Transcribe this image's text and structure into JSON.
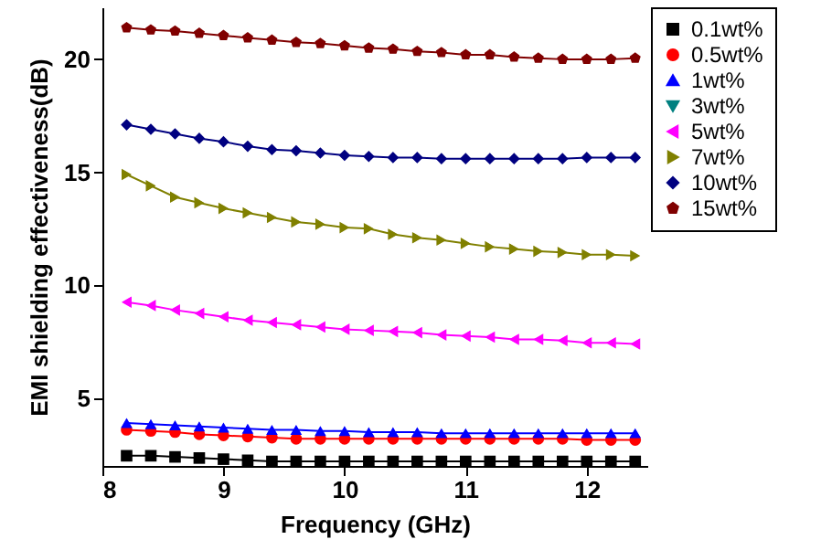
{
  "chart_data": {
    "type": "line",
    "xlabel": "Frequency (GHz)",
    "ylabel": "EMI shielding effectiveness(dB)",
    "x": [
      8.2,
      8.4,
      8.6,
      8.8,
      9.0,
      9.2,
      9.4,
      9.6,
      9.8,
      10.0,
      10.2,
      10.4,
      10.6,
      10.8,
      11.0,
      11.2,
      11.4,
      11.6,
      11.8,
      12.0,
      12.2,
      12.4
    ],
    "xlim": [
      8,
      12.5
    ],
    "xticks": [
      8,
      9,
      10,
      11,
      12
    ],
    "ylim": [
      2,
      22.3
    ],
    "yticks": [
      5,
      10,
      15,
      20
    ],
    "grid": false,
    "legend": "right",
    "line_style": "solid",
    "series": [
      {
        "name": "0.1wt%",
        "color": "#000000",
        "marker": "square",
        "values": [
          2.45,
          2.45,
          2.4,
          2.35,
          2.3,
          2.25,
          2.2,
          2.2,
          2.2,
          2.2,
          2.2,
          2.2,
          2.2,
          2.2,
          2.2,
          2.2,
          2.2,
          2.2,
          2.2,
          2.2,
          2.2,
          2.2
        ]
      },
      {
        "name": "0.5wt%",
        "color": "#ff0000",
        "marker": "circle",
        "values": [
          3.6,
          3.55,
          3.5,
          3.4,
          3.35,
          3.3,
          3.25,
          3.2,
          3.2,
          3.2,
          3.2,
          3.2,
          3.2,
          3.2,
          3.2,
          3.2,
          3.2,
          3.2,
          3.2,
          3.15,
          3.15,
          3.15
        ]
      },
      {
        "name": "1wt%",
        "color": "#0000ff",
        "marker": "triangle",
        "values": [
          3.9,
          3.85,
          3.8,
          3.75,
          3.7,
          3.65,
          3.6,
          3.6,
          3.55,
          3.55,
          3.5,
          3.5,
          3.5,
          3.45,
          3.45,
          3.45,
          3.45,
          3.45,
          3.45,
          3.45,
          3.45,
          3.45
        ]
      },
      {
        "name": "3wt%",
        "color": "#008080",
        "marker": "triangle-down",
        "values": [
          null,
          null,
          null,
          null,
          null,
          null,
          null,
          null,
          null,
          null,
          null,
          null,
          null,
          null,
          null,
          null,
          null,
          null,
          null,
          null,
          null,
          null
        ]
      },
      {
        "name": "5wt%",
        "color": "#ff00ff",
        "marker": "triangle-left",
        "values": [
          9.25,
          9.1,
          8.9,
          8.75,
          8.6,
          8.45,
          8.35,
          8.25,
          8.15,
          8.05,
          8.0,
          7.95,
          7.9,
          7.8,
          7.75,
          7.7,
          7.6,
          7.6,
          7.55,
          7.45,
          7.45,
          7.4
        ]
      },
      {
        "name": "7wt%",
        "color": "#808000",
        "marker": "triangle-right",
        "values": [
          14.9,
          14.4,
          13.9,
          13.65,
          13.4,
          13.2,
          13.0,
          12.8,
          12.7,
          12.55,
          12.5,
          12.25,
          12.1,
          12.0,
          11.85,
          11.7,
          11.6,
          11.5,
          11.45,
          11.35,
          11.35,
          11.3
        ]
      },
      {
        "name": "10wt%",
        "color": "#000080",
        "marker": "diamond",
        "values": [
          17.1,
          16.9,
          16.7,
          16.5,
          16.35,
          16.15,
          16.0,
          15.95,
          15.85,
          15.75,
          15.7,
          15.65,
          15.65,
          15.6,
          15.6,
          15.6,
          15.6,
          15.6,
          15.6,
          15.65,
          15.65,
          15.65
        ]
      },
      {
        "name": "15wt%",
        "color": "#800000",
        "marker": "star",
        "values": [
          21.4,
          21.3,
          21.25,
          21.15,
          21.05,
          20.95,
          20.85,
          20.75,
          20.7,
          20.6,
          20.5,
          20.45,
          20.35,
          20.3,
          20.2,
          20.2,
          20.1,
          20.05,
          20.0,
          20.0,
          20.0,
          20.05
        ]
      }
    ]
  }
}
